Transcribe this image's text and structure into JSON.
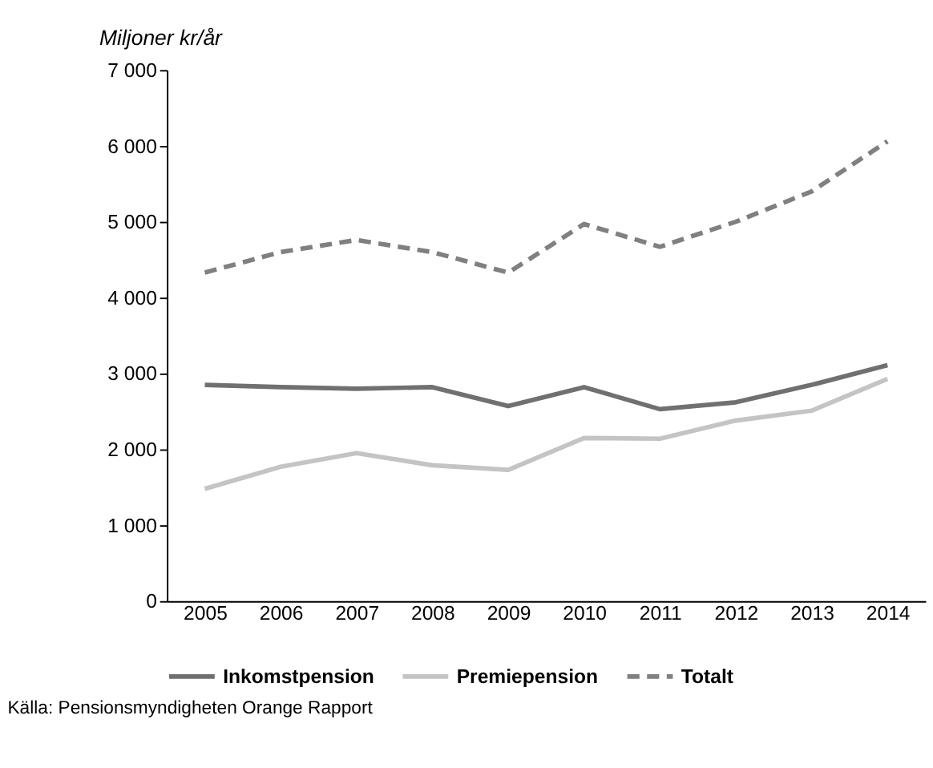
{
  "chart_data": {
    "type": "line",
    "ylabel": "Miljoner kr/år",
    "categories": [
      "2005",
      "2006",
      "2007",
      "2008",
      "2009",
      "2010",
      "2011",
      "2012",
      "2013",
      "2014"
    ],
    "series": [
      {
        "name": "Inkomstpension",
        "color": "#707070",
        "line_style": "solid",
        "values": [
          2850,
          2820,
          2800,
          2820,
          2570,
          2820,
          2530,
          2620,
          2850,
          3110
        ]
      },
      {
        "name": "Premiepension",
        "color": "#c4c4c4",
        "line_style": "solid",
        "values": [
          1480,
          1770,
          1950,
          1790,
          1730,
          2150,
          2140,
          2380,
          2510,
          2930
        ]
      },
      {
        "name": "Totalt",
        "color": "#808080",
        "line_style": "dashed",
        "values": [
          4330,
          4600,
          4760,
          4600,
          4330,
          4970,
          4670,
          5000,
          5400,
          6060
        ]
      }
    ],
    "ylim": [
      0,
      7000
    ],
    "yticks": [
      {
        "value": 0,
        "label": "0"
      },
      {
        "value": 1000,
        "label": "1 000"
      },
      {
        "value": 2000,
        "label": "2 000"
      },
      {
        "value": 3000,
        "label": "3 000"
      },
      {
        "value": 4000,
        "label": "4 000"
      },
      {
        "value": 5000,
        "label": "5 000"
      },
      {
        "value": 6000,
        "label": "6 000"
      },
      {
        "value": 7000,
        "label": "7 000"
      }
    ],
    "grid": false,
    "legend": "bottom",
    "marker": "none",
    "annotations": [
      "Källa: Pensionsmyndigheten Orange Rapport"
    ]
  }
}
